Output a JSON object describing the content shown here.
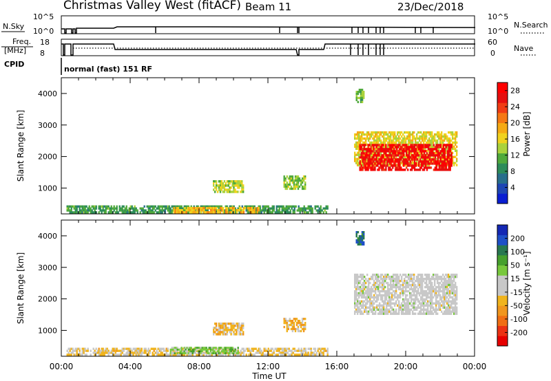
{
  "header": {
    "title": "Christmas Valley West (fitACF)",
    "beam": "Beam 11",
    "date": "23/Dec/2018"
  },
  "top_panels": {
    "nsky_label": "N.Sky",
    "nsky_ticks": [
      "10^5",
      "10^0"
    ],
    "nsearch_label": "N.Search",
    "nsearch_ticks": [
      "10^5",
      "10^0"
    ],
    "freq_label_line1": "Freq.",
    "freq_label_line2": "[MHz]",
    "freq_ticks": [
      "18",
      "8"
    ],
    "nave_label": "Nave",
    "nave_ticks": [
      "60",
      "0"
    ],
    "cpid_label": "CPID",
    "cpid_text": "normal (fast) 151 RF"
  },
  "colors": {
    "power_scale": [
      "#0a1ed2",
      "#1e46b4",
      "#286e8c",
      "#2d8c5a",
      "#50aa3c",
      "#aad23c",
      "#f0d21e",
      "#f5aa14",
      "#f57814",
      "#f03c14",
      "#e60f0f",
      "#ff0000"
    ],
    "velocity_scale": [
      "#1428b4",
      "#1e50c8",
      "#287850",
      "#46a02d",
      "#78c83c",
      "#c8c8c8",
      "#c8c8c8",
      "#f0b41e",
      "#f0961e",
      "#f06e14",
      "#eb3214",
      "#e60000"
    ]
  },
  "chart_data": [
    {
      "type": "heatmap",
      "ylabel": "Slant Range [km]",
      "xlabel": "",
      "x_ticks": [
        "00:00",
        "04:00",
        "08:00",
        "12:00",
        "16:00",
        "20:00",
        "00:00"
      ],
      "y_ticks": [
        1000,
        2000,
        3000,
        4000
      ],
      "xlim": [
        0,
        24
      ],
      "ylim": [
        180,
        4500
      ],
      "colorbar": {
        "label": "Power [dB]",
        "ticks": [
          "4",
          "8",
          "12",
          "16",
          "20",
          "24",
          "28"
        ],
        "range": [
          0,
          30
        ]
      },
      "regions": [
        {
          "x": [
            0.3,
            15.5
          ],
          "y": [
            200,
            450
          ],
          "value": 10
        },
        {
          "x": [
            6.5,
            11.5
          ],
          "y": [
            200,
            400
          ],
          "value": 18
        },
        {
          "x": [
            8.8,
            10.6
          ],
          "y": [
            850,
            1250
          ],
          "value": 14
        },
        {
          "x": [
            12.9,
            14.2
          ],
          "y": [
            950,
            1400
          ],
          "value": 13
        },
        {
          "x": [
            17.1,
            17.6
          ],
          "y": [
            3700,
            4150
          ],
          "value": 12
        },
        {
          "x": [
            17.0,
            23.0
          ],
          "y": [
            1700,
            2800
          ],
          "value": 16
        },
        {
          "x": [
            17.3,
            22.7
          ],
          "y": [
            1550,
            2400
          ],
          "value": 27
        }
      ]
    },
    {
      "type": "heatmap",
      "ylabel": "Slant Range [km]",
      "xlabel": "Time UT",
      "x_ticks": [
        "00:00",
        "04:00",
        "08:00",
        "12:00",
        "16:00",
        "20:00",
        "00:00"
      ],
      "y_ticks": [
        1000,
        2000,
        3000,
        4000
      ],
      "xlim": [
        0,
        24
      ],
      "ylim": [
        180,
        4500
      ],
      "colorbar": {
        "label": "Velocity [m s⁻¹]",
        "ticks": [
          "200",
          "100",
          "50",
          "15",
          "-15",
          "-50",
          "-100",
          "-200"
        ],
        "range": [
          -250,
          250
        ]
      },
      "regions": [
        {
          "x": [
            0.3,
            15.5
          ],
          "y": [
            200,
            450
          ],
          "value": -40
        },
        {
          "x": [
            6.3,
            10.3
          ],
          "y": [
            250,
            480
          ],
          "value": 60
        },
        {
          "x": [
            8.8,
            10.6
          ],
          "y": [
            850,
            1250
          ],
          "value": -60
        },
        {
          "x": [
            12.9,
            14.2
          ],
          "y": [
            950,
            1400
          ],
          "value": -70
        },
        {
          "x": [
            17.1,
            17.6
          ],
          "y": [
            3700,
            4150
          ],
          "value": 160
        },
        {
          "x": [
            17.0,
            23.0
          ],
          "y": [
            1500,
            2800
          ],
          "value": 0
        }
      ]
    }
  ]
}
